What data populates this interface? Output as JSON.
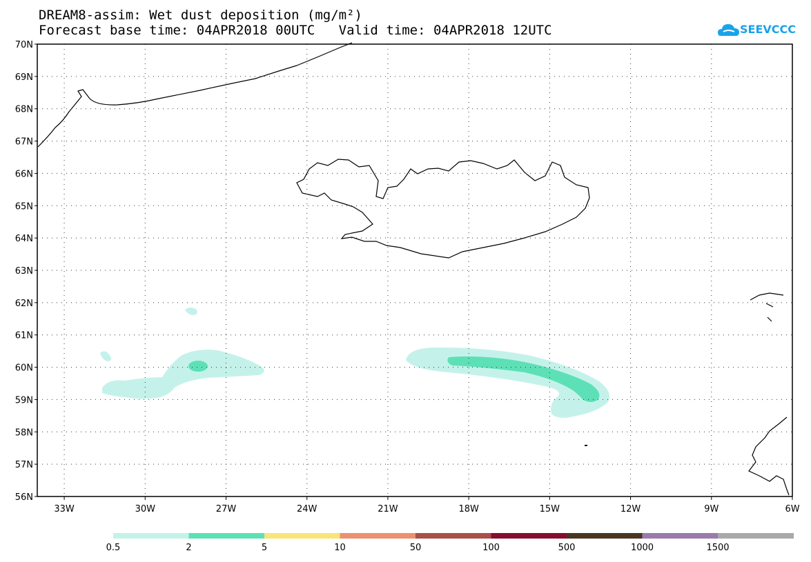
{
  "header": {
    "title_line1": "DREAM8-assim: Wet dust deposition (mg/m²)",
    "title_line2": "Forecast base time: 04APR2018 00UTC   Valid time: 04APR2018 12UTC",
    "logo_text": "SEEVCCC"
  },
  "map": {
    "lon_labels": [
      "33W",
      "30W",
      "27W",
      "24W",
      "21W",
      "18W",
      "15W",
      "12W",
      "9W",
      "6W"
    ],
    "lat_labels": [
      "70N",
      "69N",
      "68N",
      "67N",
      "66N",
      "65N",
      "64N",
      "63N",
      "62N",
      "61N",
      "60N",
      "59N",
      "58N",
      "57N",
      "56N"
    ],
    "lon_range": [
      -34.0,
      -6.0
    ],
    "lat_range": [
      56.0,
      70.0
    ],
    "gridlines": "dotted"
  },
  "legend": {
    "labels": [
      "0.5",
      "2",
      "5",
      "10",
      "50",
      "100",
      "500",
      "1000",
      "1500"
    ],
    "colors": [
      "#c4f2ea",
      "#5ee0b6",
      "#f7e57a",
      "#ec9170",
      "#a9504a",
      "#860d2e",
      "#4a3522",
      "#9a7bab",
      "#a9a9a9"
    ]
  }
}
